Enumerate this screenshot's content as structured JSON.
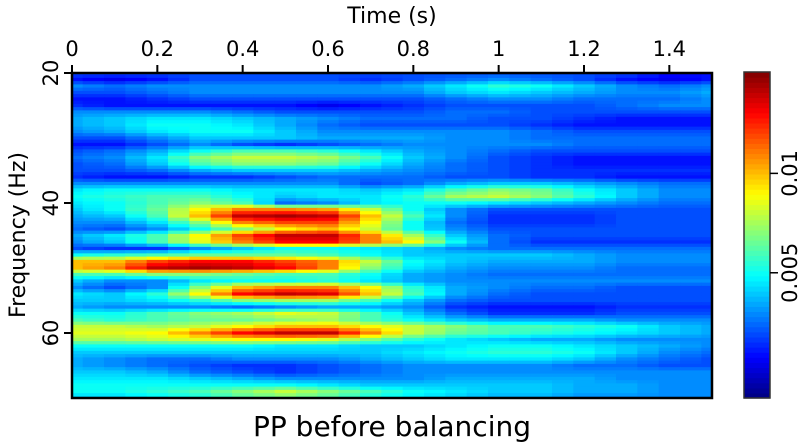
{
  "chart_data": {
    "type": "heatmap",
    "title": "PP before balancing",
    "xlabel": "Time (s)",
    "ylabel": "Frequency (Hz)",
    "xlim": [
      0,
      1.5
    ],
    "ylim": [
      20,
      70
    ],
    "x_ticks": [
      "0",
      "0.2",
      "0.4",
      "0.6",
      "0.8",
      "1",
      "1.2",
      "1.4"
    ],
    "x_tick_values": [
      0,
      0.2,
      0.4,
      0.6,
      0.8,
      1.0,
      1.2,
      1.4
    ],
    "y_ticks": [
      "20",
      "40",
      "60"
    ],
    "y_tick_values": [
      20,
      40,
      60
    ],
    "colormap": "jet",
    "colorbar": {
      "range": [
        -0.0013,
        0.0151
      ],
      "ticks": [
        "0.005",
        "0.01"
      ],
      "tick_values": [
        0.005,
        0.01
      ]
    },
    "value_scale": 0.001,
    "times": [
      0,
      0.1,
      0.2,
      0.3,
      0.4,
      0.5,
      0.6,
      0.7,
      0.8,
      0.9,
      1.0,
      1.1,
      1.2,
      1.3,
      1.4,
      1.5
    ],
    "frequencies": [
      20,
      21,
      22,
      23,
      24,
      25,
      26,
      27,
      28,
      29,
      30,
      31,
      32,
      33,
      34,
      35,
      36,
      37,
      38,
      39,
      40,
      41,
      42,
      43,
      44,
      45,
      46,
      47,
      48,
      49,
      50,
      51,
      52,
      53,
      54,
      55,
      56,
      57,
      58,
      59,
      60,
      61,
      62,
      63,
      64,
      65,
      66,
      67,
      68,
      69,
      70
    ],
    "values": [
      [
        2,
        2,
        2,
        2,
        2,
        2,
        2,
        2,
        2,
        2,
        2,
        2,
        2,
        2,
        1,
        1
      ],
      [
        1,
        0.5,
        1,
        2,
        2,
        2,
        2,
        1.5,
        2,
        2.5,
        3,
        2.5,
        2,
        1,
        0.5,
        1
      ],
      [
        3,
        2.5,
        3,
        3,
        3,
        3,
        3,
        3,
        3.5,
        4.5,
        5.5,
        5,
        4,
        3,
        2.5,
        3
      ],
      [
        2,
        2,
        2.5,
        3,
        3,
        3,
        3,
        3,
        3,
        4,
        4.5,
        4,
        3.5,
        3,
        3,
        3.5
      ],
      [
        1,
        1,
        1.5,
        2,
        2,
        2,
        2,
        2,
        2,
        2.5,
        3,
        3,
        2.5,
        2.5,
        2.5,
        3
      ],
      [
        1.5,
        1,
        1,
        1,
        1,
        1,
        0.5,
        1,
        1.5,
        2,
        2,
        2,
        2,
        2.5,
        3,
        3
      ],
      [
        3,
        3,
        3,
        3,
        2.5,
        2,
        2,
        2,
        2,
        2.5,
        2.5,
        2,
        2,
        2,
        2,
        2
      ],
      [
        3.5,
        4,
        4.5,
        4.5,
        4,
        3.5,
        3,
        2.5,
        2.5,
        2.5,
        2,
        2,
        1.5,
        1,
        1,
        1
      ],
      [
        3.5,
        4,
        5,
        5,
        4.5,
        3.5,
        2.5,
        2,
        2,
        2,
        2,
        1.5,
        1,
        1,
        1,
        1
      ],
      [
        3,
        3.5,
        4.5,
        5,
        5,
        4,
        3,
        3,
        3,
        3,
        3,
        2.5,
        2,
        2,
        2,
        2
      ],
      [
        2,
        2,
        3,
        4,
        4,
        4,
        3.5,
        3.5,
        3.5,
        3,
        3,
        2.5,
        2.5,
        2.5,
        2.5,
        2.5
      ],
      [
        1,
        1,
        2,
        3,
        2,
        1.5,
        2,
        2.5,
        3,
        3,
        3,
        3,
        2.5,
        2.5,
        2.5,
        2.5
      ],
      [
        2,
        2.5,
        3.5,
        5,
        6,
        6,
        5.5,
        4.5,
        3.5,
        3,
        2.5,
        2,
        2,
        2,
        2,
        2
      ],
      [
        2.5,
        3,
        4.5,
        7,
        8,
        8,
        7.5,
        6,
        4,
        3,
        2,
        1.5,
        1,
        1,
        1,
        1
      ],
      [
        2,
        2.5,
        4,
        6,
        7,
        7,
        6.5,
        5,
        3.5,
        2.5,
        2,
        1.5,
        1,
        1,
        1,
        1
      ],
      [
        2,
        2,
        2.5,
        3.5,
        4,
        4,
        4,
        3.5,
        3,
        2.5,
        2,
        1.5,
        1.5,
        1.5,
        1.5,
        1.5
      ],
      [
        1.5,
        1,
        1,
        1.5,
        1.5,
        2,
        2.5,
        2.5,
        2.5,
        2,
        2,
        1.5,
        1.5,
        1,
        1,
        1
      ],
      [
        3,
        3,
        3,
        3,
        3,
        3,
        3,
        2,
        2.5,
        3.5,
        4,
        4,
        3.5,
        3,
        2.5,
        2.5
      ],
      [
        4.5,
        5,
        5,
        5,
        4.5,
        4.5,
        4.5,
        4,
        4.5,
        6,
        7,
        6.5,
        5,
        4,
        3,
        3
      ],
      [
        5,
        5.5,
        6,
        6,
        5,
        4,
        4.5,
        4.5,
        5.5,
        7.5,
        8,
        7,
        5.5,
        4,
        3,
        3
      ],
      [
        4.5,
        5,
        6,
        7,
        6,
        2.5,
        3,
        4.5,
        5,
        5,
        4.5,
        4,
        3.5,
        3,
        2.5,
        2.5
      ],
      [
        4,
        5,
        6.5,
        9,
        11,
        11,
        10.5,
        8,
        5,
        3,
        2,
        2,
        2,
        2,
        2,
        2
      ],
      [
        3.5,
        4,
        6,
        10,
        14,
        14.5,
        14,
        10,
        6,
        3,
        1.5,
        1.5,
        1.5,
        2,
        2,
        2
      ],
      [
        3,
        3,
        4.5,
        7,
        11,
        12,
        12,
        9,
        5,
        2.5,
        1.5,
        1.5,
        1.5,
        2,
        2,
        2
      ],
      [
        2.5,
        2,
        3,
        5,
        7,
        9,
        10,
        8,
        5,
        3,
        2,
        2,
        2,
        2,
        2,
        2
      ],
      [
        3.5,
        4.5,
        6,
        9,
        12,
        14,
        14,
        11,
        7.5,
        4,
        2.5,
        2,
        2,
        2,
        2,
        2
      ],
      [
        3,
        4,
        6,
        8.5,
        11,
        13,
        13,
        11,
        9,
        5,
        2.5,
        1.5,
        1.5,
        1.5,
        1.5,
        1.5
      ],
      [
        2,
        1.5,
        1.5,
        3,
        4,
        5,
        5,
        4.5,
        4,
        3,
        2.5,
        2.5,
        2.5,
        2.5,
        2.5,
        2.5
      ],
      [
        5,
        5.5,
        6,
        6.5,
        6.5,
        6.5,
        6,
        5,
        4,
        4,
        4,
        4,
        3.5,
        3,
        3,
        3
      ],
      [
        10,
        10,
        12,
        13,
        13,
        12,
        11,
        8,
        5,
        4,
        3.5,
        3.5,
        3.5,
        3,
        3,
        3
      ],
      [
        10,
        11,
        14,
        14.5,
        14,
        13,
        11,
        7,
        4.5,
        3.5,
        3,
        3,
        3,
        2.5,
        2.5,
        2.5
      ],
      [
        6,
        6,
        7,
        7,
        6.5,
        6,
        6,
        5,
        3.5,
        3,
        2.5,
        2.5,
        2.5,
        2.5,
        2.5,
        2.5
      ],
      [
        4,
        3,
        3,
        4.5,
        5,
        5,
        5.5,
        4.5,
        3.5,
        3,
        3,
        3,
        3,
        3,
        3,
        3
      ],
      [
        3,
        2,
        3,
        7,
        10,
        11,
        11,
        9,
        5.5,
        3.5,
        3,
        2.5,
        2.5,
        2,
        2,
        2
      ],
      [
        4.5,
        4,
        5.5,
        9,
        13,
        14,
        13.5,
        10,
        6,
        3.5,
        2.5,
        2,
        2,
        2,
        2,
        2
      ],
      [
        4,
        4,
        4.5,
        5.5,
        7,
        7.5,
        7.5,
        6,
        4,
        2.5,
        2,
        2,
        2,
        2,
        2,
        2
      ],
      [
        3.5,
        3,
        3,
        3,
        2.5,
        3,
        3.5,
        3.5,
        3,
        1.5,
        1,
        1,
        1,
        1.5,
        1.5,
        1.5
      ],
      [
        5,
        5,
        6,
        7,
        7.5,
        8.5,
        8,
        6,
        4,
        2.5,
        1.5,
        1.5,
        1.5,
        2,
        2,
        2
      ],
      [
        6,
        5.5,
        6,
        6.5,
        6.5,
        7,
        7.5,
        6,
        5,
        4,
        3.5,
        3.5,
        3.5,
        3,
        3,
        3
      ],
      [
        8,
        8,
        7.5,
        8,
        9,
        10,
        10,
        9,
        8,
        7,
        6,
        6,
        5.5,
        5,
        4,
        3.5
      ],
      [
        8.5,
        8.5,
        9,
        11,
        13,
        14,
        14,
        11,
        8,
        6.5,
        6,
        5.5,
        5,
        4.5,
        4,
        3.5
      ],
      [
        7.5,
        7.5,
        8,
        8.5,
        9,
        9,
        8.5,
        7,
        5.5,
        4.5,
        4,
        3.5,
        3.5,
        3,
        3,
        3
      ],
      [
        5,
        5,
        5,
        5,
        5,
        4.5,
        4.5,
        4,
        4,
        4.5,
        5,
        5,
        4.5,
        4,
        3.5,
        3
      ],
      [
        4,
        4,
        4,
        4,
        4,
        4,
        4,
        4,
        4.5,
        5,
        5.5,
        5.5,
        5,
        4,
        3,
        2.5
      ],
      [
        3.5,
        3,
        2.5,
        2.5,
        3,
        3,
        3,
        3.5,
        4,
        4.5,
        4.5,
        4.5,
        4,
        3,
        2.5,
        2
      ],
      [
        3.5,
        3,
        2.5,
        2,
        1.5,
        1.5,
        2,
        2.5,
        3,
        3,
        3,
        3,
        2.5,
        2.5,
        2,
        2
      ],
      [
        4,
        4,
        3.5,
        2.5,
        2,
        1.5,
        2,
        2.5,
        3,
        3,
        3,
        3,
        3,
        3,
        3,
        3
      ],
      [
        4.5,
        4.5,
        4.5,
        4,
        3.5,
        3,
        3,
        3,
        3,
        3.5,
        3.5,
        3.5,
        3.5,
        3,
        3,
        3
      ],
      [
        5,
        5,
        5,
        5,
        5,
        5,
        4.5,
        4,
        4,
        4,
        4,
        4,
        3.5,
        3.5,
        3,
        3
      ],
      [
        5,
        5,
        5.5,
        6,
        7,
        8,
        7,
        6,
        5,
        4.5,
        4,
        4,
        3.5,
        3.5,
        3,
        3
      ],
      [
        4,
        4,
        4.5,
        5,
        6,
        6.5,
        6,
        5,
        4.5,
        4,
        3.5,
        3.5,
        3,
        3,
        3,
        3
      ]
    ]
  }
}
